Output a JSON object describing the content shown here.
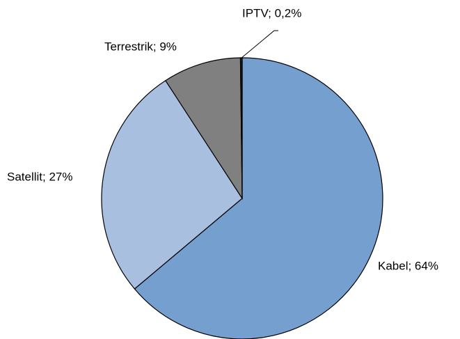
{
  "chart_data": {
    "type": "pie",
    "values": [
      64,
      27,
      9,
      0.2
    ],
    "value_labels": [
      "Kabel; 64%",
      "Satellit; 27%",
      "Terrestrik; 9%",
      "IPTV; 0,2%"
    ],
    "colors": [
      "#749fcf",
      "#a9bfe0",
      "#808080",
      "#1f1f1f"
    ]
  }
}
